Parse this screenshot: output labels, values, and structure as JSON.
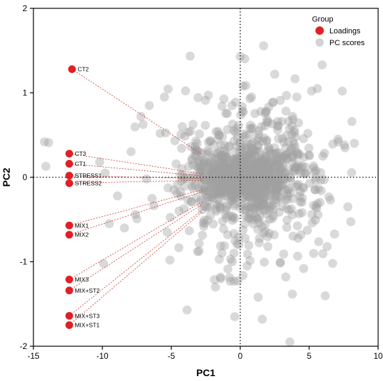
{
  "chart_data": {
    "type": "scatter",
    "xlabel": "PC1",
    "ylabel": "PC2",
    "xlim": [
      -15,
      10
    ],
    "ylim": [
      -2,
      2
    ],
    "xticks": [
      -15,
      -10,
      -5,
      0,
      5,
      10
    ],
    "yticks": [
      -2,
      -1,
      0,
      1,
      2
    ],
    "reference_lines": {
      "x": 0,
      "y": 0,
      "style": "dotted"
    },
    "legend": {
      "title": "Group",
      "position": "top-right",
      "entries": [
        {
          "name": "Loadings",
          "color": "#e31e24"
        },
        {
          "name": "PC scores",
          "color": "#c8c8c8"
        }
      ]
    },
    "series": [
      {
        "name": "Loadings",
        "color": "#e31e24",
        "vectors_from_origin": true,
        "points": [
          {
            "label": "CT2",
            "x": -12.2,
            "y": 1.28
          },
          {
            "label": "CT3",
            "x": -12.4,
            "y": 0.28
          },
          {
            "label": "CT1",
            "x": -12.4,
            "y": 0.16
          },
          {
            "label": "STRESS1",
            "x": -12.4,
            "y": 0.02
          },
          {
            "label": "STRESS2",
            "x": -12.4,
            "y": -0.07
          },
          {
            "label": "MIX1",
            "x": -12.4,
            "y": -0.57
          },
          {
            "label": "MIX2",
            "x": -12.4,
            "y": -0.68
          },
          {
            "label": "MIX3",
            "x": -12.4,
            "y": -1.21
          },
          {
            "label": "MIX+ST2",
            "x": -12.4,
            "y": -1.34
          },
          {
            "label": "MIX+ST3",
            "x": -12.4,
            "y": -1.64
          },
          {
            "label": "MIX+ST1",
            "x": -12.4,
            "y": -1.75
          }
        ]
      },
      {
        "name": "PC scores",
        "color": "#a0a0a0",
        "opacity": 0.4,
        "points": [
          [
            -14.2,
            0.42
          ],
          [
            -13.9,
            0.41
          ],
          [
            -14.1,
            0.13
          ],
          [
            -9.8,
            0.05
          ],
          [
            -10.2,
            0.18
          ],
          [
            -9.5,
            -0.55
          ],
          [
            -8.9,
            -0.22
          ],
          [
            -8.4,
            -0.6
          ],
          [
            -7.6,
            -0.44
          ],
          [
            -7.2,
            0.72
          ],
          [
            -6.6,
            0.85
          ],
          [
            -5.5,
            0.95
          ],
          [
            -5.8,
            0.52
          ],
          [
            -6.8,
            -0.02
          ],
          [
            -6.4,
            -0.25
          ],
          [
            -5.3,
            -0.65
          ],
          [
            -5.1,
            -0.98
          ],
          [
            -4.2,
            0.6
          ],
          [
            -3.1,
            -0.88
          ],
          [
            -2.5,
            -0.2
          ],
          [
            -1.8,
            -1.3
          ],
          [
            -1.5,
            0.18
          ],
          [
            -0.6,
            0.85
          ],
          [
            -0.4,
            -1.65
          ],
          [
            -0.2,
            0.47
          ],
          [
            0.0,
            1.43
          ],
          [
            0.2,
            1.08
          ],
          [
            0.5,
            -1.05
          ],
          [
            0.7,
            0.58
          ],
          [
            1.0,
            0.32
          ],
          [
            1.3,
            -1.42
          ],
          [
            1.5,
            0.78
          ],
          [
            1.6,
            -1.68
          ],
          [
            2.0,
            -0.82
          ],
          [
            2.5,
            1.22
          ],
          [
            2.6,
            -0.3
          ],
          [
            2.9,
            0.91
          ],
          [
            3.3,
            -1.18
          ],
          [
            3.6,
            -1.95
          ],
          [
            3.8,
            0.72
          ],
          [
            4.1,
            0.95
          ],
          [
            4.4,
            -0.68
          ],
          [
            4.6,
            -1.08
          ],
          [
            4.9,
            0.52
          ],
          [
            5.2,
            -0.44
          ],
          [
            5.6,
            1.05
          ],
          [
            6.0,
            0.25
          ],
          [
            6.3,
            -0.82
          ],
          [
            6.7,
            -1.02
          ],
          [
            7.1,
            0.42
          ],
          [
            7.4,
            1.02
          ],
          [
            7.8,
            -0.35
          ],
          [
            8.1,
            0.66
          ],
          [
            7.6,
            0.35
          ],
          [
            3.2,
            0.18
          ],
          [
            1.9,
            0.24
          ],
          [
            -3.5,
            0.22
          ],
          [
            -2.2,
            -0.35
          ],
          [
            -4.8,
            -0.15
          ],
          [
            -1.0,
            -0.48
          ]
        ]
      }
    ]
  }
}
